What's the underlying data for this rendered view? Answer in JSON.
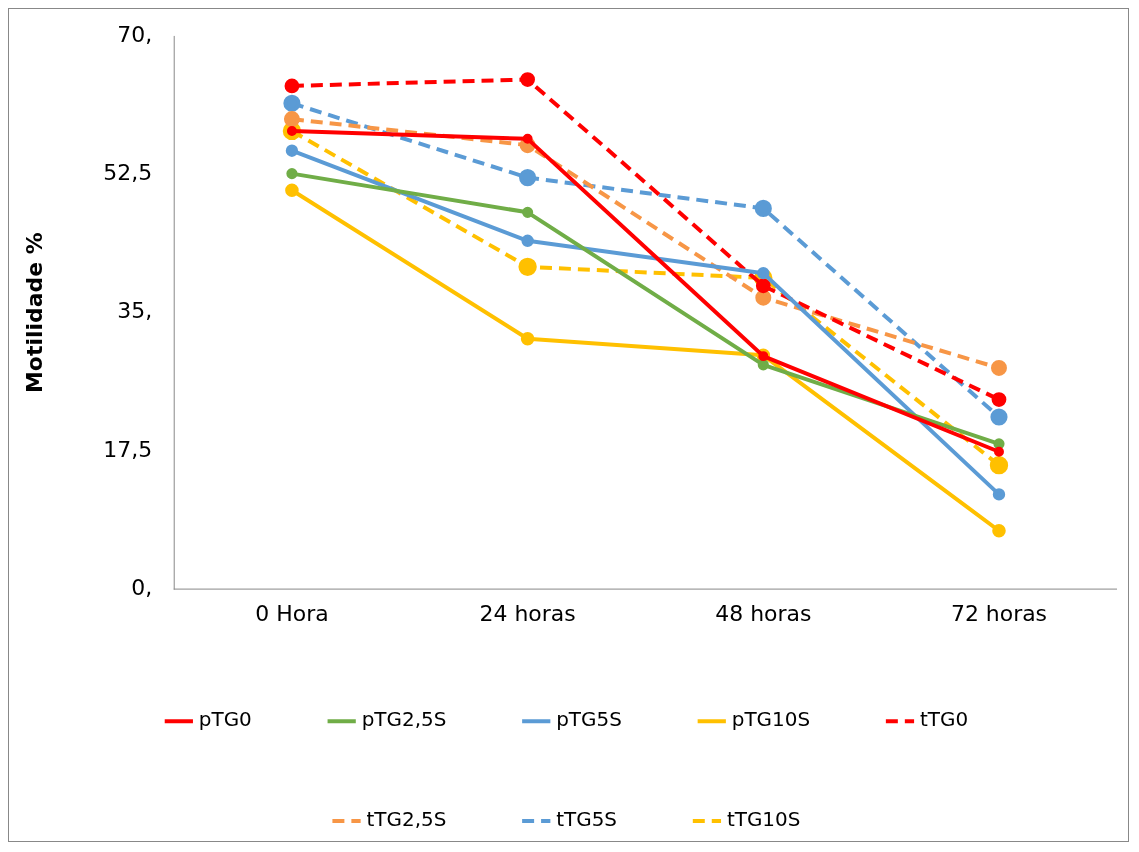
{
  "chart_data": {
    "type": "line",
    "ylabel": "Motilidade %",
    "categories": [
      "0 Hora",
      "24 horas",
      "48 horas",
      "72 horas"
    ],
    "ylim": [
      0,
      70
    ],
    "yticks": [
      {
        "value": 0,
        "label": "0,"
      },
      {
        "value": 17.5,
        "label": "17,5"
      },
      {
        "value": 35,
        "label": "35,"
      },
      {
        "value": 52.5,
        "label": "52,5"
      },
      {
        "value": 70,
        "label": "70,"
      }
    ],
    "grid": false,
    "legend": "bottom",
    "marker": "circle",
    "series": [
      {
        "name": "pTG0",
        "color": "#ff0000",
        "line_style": "solid",
        "values": [
          58.0,
          57.0,
          29.5,
          17.4
        ]
      },
      {
        "name": "pTG2,5S",
        "color": "#70ad47",
        "line_style": "solid",
        "values": [
          52.6,
          47.7,
          28.4,
          18.4
        ]
      },
      {
        "name": "pTG5S",
        "color": "#5b9bd5",
        "line_style": "solid",
        "values": [
          55.5,
          44.1,
          40.0,
          12.0
        ]
      },
      {
        "name": "pTG10S",
        "color": "#ffc000",
        "line_style": "solid",
        "values": [
          50.5,
          31.7,
          29.6,
          7.4
        ]
      },
      {
        "name": "tTG0",
        "color": "#ff0000",
        "line_style": "dashed",
        "values": [
          63.7,
          64.5,
          38.4,
          24.0
        ]
      },
      {
        "name": "tTG2,5S",
        "color": "#f79646",
        "line_style": "dashed",
        "values": [
          59.5,
          56.2,
          36.9,
          28.0
        ]
      },
      {
        "name": "tTG5S",
        "color": "#5b9bd5",
        "line_style": "dashed",
        "values": [
          61.5,
          52.1,
          48.2,
          21.8
        ]
      },
      {
        "name": "tTG10S",
        "color": "#ffc000",
        "line_style": "dashed",
        "values": [
          58.0,
          40.8,
          39.4,
          15.7
        ]
      }
    ]
  }
}
